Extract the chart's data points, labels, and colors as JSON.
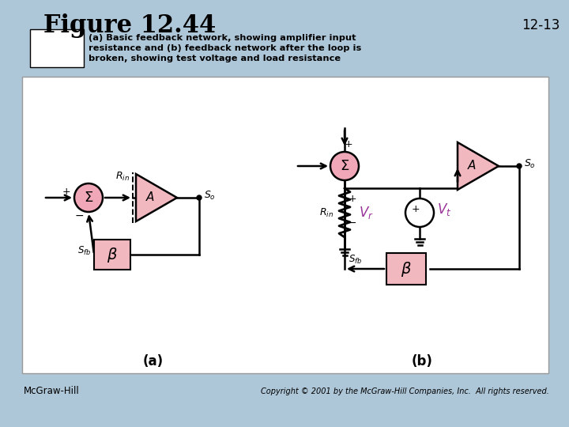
{
  "title": "Figure 12.44",
  "page_num": "12-13",
  "footer_left": "McGraw-Hill",
  "footer_right": "Copyright © 2001 by the McGraw-Hill Companies, Inc.  All rights reserved.",
  "bg_color": "#adc6d8",
  "diagram_bg": "#ffffff",
  "pink_fill": "#f2b8c0",
  "pink_ellipse": "#f0a8b8",
  "label_a": "(a)",
  "label_b": "(b)",
  "magenta": "#993399"
}
